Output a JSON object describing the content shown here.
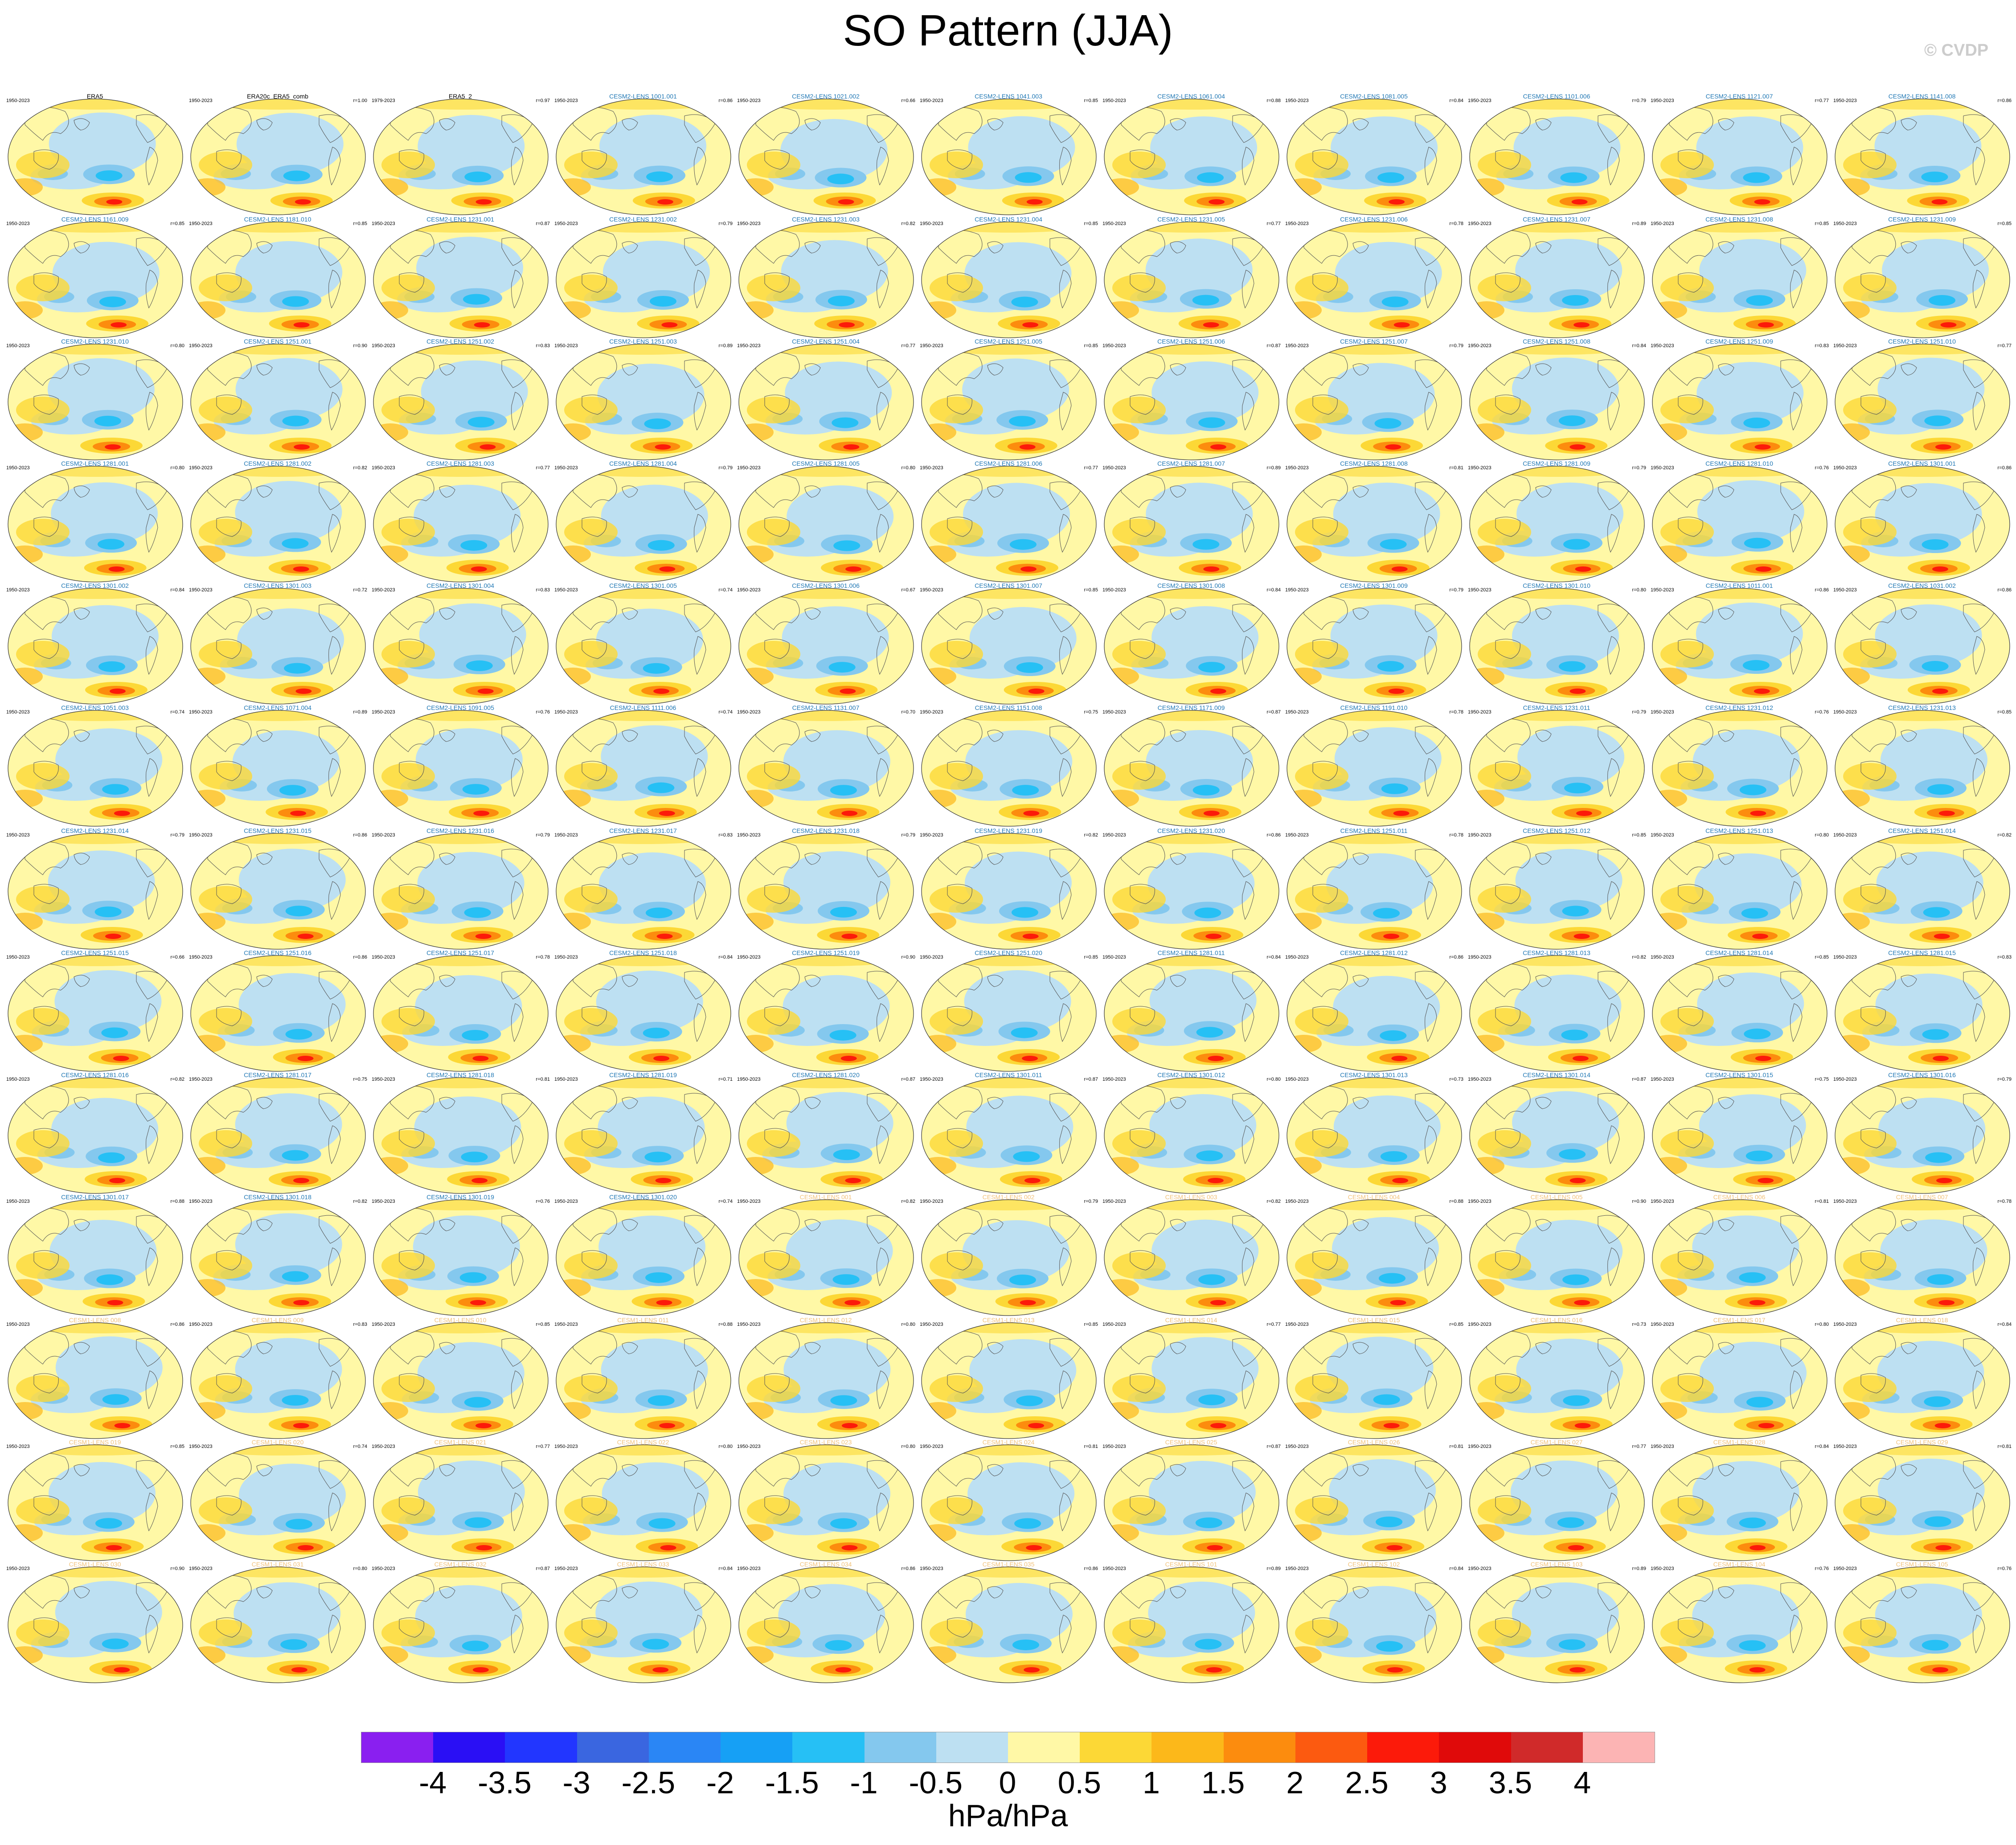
{
  "title": "SO Pattern (JJA)",
  "watermark": "© CVDP",
  "colorbar": {
    "ticks": [
      "-4",
      "-3.5",
      "-3",
      "-2.5",
      "-2",
      "-1.5",
      "-1",
      "-0.5",
      "0",
      "0.5",
      "1",
      "1.5",
      "2",
      "2.5",
      "3",
      "3.5",
      "4"
    ],
    "colors": [
      "#8a1ff0",
      "#2a0ff5",
      "#2236ff",
      "#3a66e0",
      "#2a86f5",
      "#16a0f5",
      "#26c0f5",
      "#84c8ee",
      "#bde0f2",
      "#fff8a6",
      "#fcd836",
      "#fcb81a",
      "#fc8c0e",
      "#fc5a10",
      "#fc1a0a",
      "#e00a0a",
      "#d02a2a",
      "#fcb4b4"
    ],
    "units": "hPa/hPa"
  },
  "panels": [
    {
      "title": "ERA5",
      "years": "1950-2023",
      "r": ""
    },
    {
      "title": "ERA20c_ERA5_comb",
      "years": "1950-2023",
      "r": "r=1.00"
    },
    {
      "title": "ERA5_2",
      "years": "1979-2023",
      "r": "r=0.97"
    },
    {
      "title": "CESM2-LENS 1001.001",
      "years": "1950-2023",
      "r": "r=0.86"
    },
    {
      "title": "CESM2-LENS 1021.002",
      "years": "1950-2023",
      "r": "r=0.66"
    },
    {
      "title": "CESM2-LENS 1041.003",
      "years": "1950-2023",
      "r": "r=0.85"
    },
    {
      "title": "CESM2-LENS 1061.004",
      "years": "1950-2023",
      "r": "r=0.88"
    },
    {
      "title": "CESM2-LENS 1081.005",
      "years": "1950-2023",
      "r": "r=0.84"
    },
    {
      "title": "CESM2-LENS 1101.006",
      "years": "1950-2023",
      "r": "r=0.79"
    },
    {
      "title": "CESM2-LENS 1121.007",
      "years": "1950-2023",
      "r": "r=0.77"
    },
    {
      "title": "CESM2-LENS 1141.008",
      "years": "1950-2023",
      "r": "r=0.86"
    },
    {
      "title": "CESM2-LENS 1161.009",
      "years": "1950-2023",
      "r": "r=0.85"
    },
    {
      "title": "CESM2-LENS 1181.010",
      "years": "1950-2023",
      "r": "r=0.85"
    },
    {
      "title": "CESM2-LENS 1231.001",
      "years": "1950-2023",
      "r": "r=0.87"
    },
    {
      "title": "CESM2-LENS 1231.002",
      "years": "1950-2023",
      "r": "r=0.79"
    },
    {
      "title": "CESM2-LENS 1231.003",
      "years": "1950-2023",
      "r": "r=0.82"
    },
    {
      "title": "CESM2-LENS 1231.004",
      "years": "1950-2023",
      "r": "r=0.85"
    },
    {
      "title": "CESM2-LENS 1231.005",
      "years": "1950-2023",
      "r": "r=0.77"
    },
    {
      "title": "CESM2-LENS 1231.006",
      "years": "1950-2023",
      "r": "r=0.78"
    },
    {
      "title": "CESM2-LENS 1231.007",
      "years": "1950-2023",
      "r": "r=0.89"
    },
    {
      "title": "CESM2-LENS 1231.008",
      "years": "1950-2023",
      "r": "r=0.85"
    },
    {
      "title": "CESM2-LENS 1231.009",
      "years": "1950-2023",
      "r": "r=0.85"
    },
    {
      "title": "CESM2-LENS 1231.010",
      "years": "1950-2023",
      "r": "r=0.80"
    },
    {
      "title": "CESM2-LENS 1251.001",
      "years": "1950-2023",
      "r": "r=0.90"
    },
    {
      "title": "CESM2-LENS 1251.002",
      "years": "1950-2023",
      "r": "r=0.83"
    },
    {
      "title": "CESM2-LENS 1251.003",
      "years": "1950-2023",
      "r": "r=0.89"
    },
    {
      "title": "CESM2-LENS 1251.004",
      "years": "1950-2023",
      "r": "r=0.77"
    },
    {
      "title": "CESM2-LENS 1251.005",
      "years": "1950-2023",
      "r": "r=0.85"
    },
    {
      "title": "CESM2-LENS 1251.006",
      "years": "1950-2023",
      "r": "r=0.87"
    },
    {
      "title": "CESM2-LENS 1251.007",
      "years": "1950-2023",
      "r": "r=0.79"
    },
    {
      "title": "CESM2-LENS 1251.008",
      "years": "1950-2023",
      "r": "r=0.84"
    },
    {
      "title": "CESM2-LENS 1251.009",
      "years": "1950-2023",
      "r": "r=0.83"
    },
    {
      "title": "CESM2-LENS 1251.010",
      "years": "1950-2023",
      "r": "r=0.77"
    },
    {
      "title": "CESM2-LENS 1281.001",
      "years": "1950-2023",
      "r": "r=0.80"
    },
    {
      "title": "CESM2-LENS 1281.002",
      "years": "1950-2023",
      "r": "r=0.82"
    },
    {
      "title": "CESM2-LENS 1281.003",
      "years": "1950-2023",
      "r": "r=0.77"
    },
    {
      "title": "CESM2-LENS 1281.004",
      "years": "1950-2023",
      "r": "r=0.79"
    },
    {
      "title": "CESM2-LENS 1281.005",
      "years": "1950-2023",
      "r": "r=0.80"
    },
    {
      "title": "CESM2-LENS 1281.006",
      "years": "1950-2023",
      "r": "r=0.77"
    },
    {
      "title": "CESM2-LENS 1281.007",
      "years": "1950-2023",
      "r": "r=0.89"
    },
    {
      "title": "CESM2-LENS 1281.008",
      "years": "1950-2023",
      "r": "r=0.81"
    },
    {
      "title": "CESM2-LENS 1281.009",
      "years": "1950-2023",
      "r": "r=0.79"
    },
    {
      "title": "CESM2-LENS 1281.010",
      "years": "1950-2023",
      "r": "r=0.76"
    },
    {
      "title": "CESM2-LENS 1301.001",
      "years": "1950-2023",
      "r": "r=0.86"
    },
    {
      "title": "CESM2-LENS 1301.002",
      "years": "1950-2023",
      "r": "r=0.84"
    },
    {
      "title": "CESM2-LENS 1301.003",
      "years": "1950-2023",
      "r": "r=0.72"
    },
    {
      "title": "CESM2-LENS 1301.004",
      "years": "1950-2023",
      "r": "r=0.83"
    },
    {
      "title": "CESM2-LENS 1301.005",
      "years": "1950-2023",
      "r": "r=0.74"
    },
    {
      "title": "CESM2-LENS 1301.006",
      "years": "1950-2023",
      "r": "r=0.67"
    },
    {
      "title": "CESM2-LENS 1301.007",
      "years": "1950-2023",
      "r": "r=0.85"
    },
    {
      "title": "CESM2-LENS 1301.008",
      "years": "1950-2023",
      "r": "r=0.84"
    },
    {
      "title": "CESM2-LENS 1301.009",
      "years": "1950-2023",
      "r": "r=0.79"
    },
    {
      "title": "CESM2-LENS 1301.010",
      "years": "1950-2023",
      "r": "r=0.80"
    },
    {
      "title": "CESM2-LENS 1011.001",
      "years": "1950-2023",
      "r": "r=0.86"
    },
    {
      "title": "CESM2-LENS 1031.002",
      "years": "1950-2023",
      "r": "r=0.86"
    },
    {
      "title": "CESM2-LENS 1051.003",
      "years": "1950-2023",
      "r": "r=0.74"
    },
    {
      "title": "CESM2-LENS 1071.004",
      "years": "1950-2023",
      "r": "r=0.89"
    },
    {
      "title": "CESM2-LENS 1091.005",
      "years": "1950-2023",
      "r": "r=0.76"
    },
    {
      "title": "CESM2-LENS 1111.006",
      "years": "1950-2023",
      "r": "r=0.74"
    },
    {
      "title": "CESM2-LENS 1131.007",
      "years": "1950-2023",
      "r": "r=0.70"
    },
    {
      "title": "CESM2-LENS 1151.008",
      "years": "1950-2023",
      "r": "r=0.75"
    },
    {
      "title": "CESM2-LENS 1171.009",
      "years": "1950-2023",
      "r": "r=0.87"
    },
    {
      "title": "CESM2-LENS 1191.010",
      "years": "1950-2023",
      "r": "r=0.78"
    },
    {
      "title": "CESM2-LENS 1231.011",
      "years": "1950-2023",
      "r": "r=0.79"
    },
    {
      "title": "CESM2-LENS 1231.012",
      "years": "1950-2023",
      "r": "r=0.76"
    },
    {
      "title": "CESM2-LENS 1231.013",
      "years": "1950-2023",
      "r": "r=0.85"
    },
    {
      "title": "CESM2-LENS 1231.014",
      "years": "1950-2023",
      "r": "r=0.79"
    },
    {
      "title": "CESM2-LENS 1231.015",
      "years": "1950-2023",
      "r": "r=0.86"
    },
    {
      "title": "CESM2-LENS 1231.016",
      "years": "1950-2023",
      "r": "r=0.79"
    },
    {
      "title": "CESM2-LENS 1231.017",
      "years": "1950-2023",
      "r": "r=0.83"
    },
    {
      "title": "CESM2-LENS 1231.018",
      "years": "1950-2023",
      "r": "r=0.79"
    },
    {
      "title": "CESM2-LENS 1231.019",
      "years": "1950-2023",
      "r": "r=0.82"
    },
    {
      "title": "CESM2-LENS 1231.020",
      "years": "1950-2023",
      "r": "r=0.86"
    },
    {
      "title": "CESM2-LENS 1251.011",
      "years": "1950-2023",
      "r": "r=0.78"
    },
    {
      "title": "CESM2-LENS 1251.012",
      "years": "1950-2023",
      "r": "r=0.85"
    },
    {
      "title": "CESM2-LENS 1251.013",
      "years": "1950-2023",
      "r": "r=0.80"
    },
    {
      "title": "CESM2-LENS 1251.014",
      "years": "1950-2023",
      "r": "r=0.82"
    },
    {
      "title": "CESM2-LENS 1251.015",
      "years": "1950-2023",
      "r": "r=0.66"
    },
    {
      "title": "CESM2-LENS 1251.016",
      "years": "1950-2023",
      "r": "r=0.86"
    },
    {
      "title": "CESM2-LENS 1251.017",
      "years": "1950-2023",
      "r": "r=0.78"
    },
    {
      "title": "CESM2-LENS 1251.018",
      "years": "1950-2023",
      "r": "r=0.84"
    },
    {
      "title": "CESM2-LENS 1251.019",
      "years": "1950-2023",
      "r": "r=0.90"
    },
    {
      "title": "CESM2-LENS 1251.020",
      "years": "1950-2023",
      "r": "r=0.85"
    },
    {
      "title": "CESM2-LENS 1281.011",
      "years": "1950-2023",
      "r": "r=0.84"
    },
    {
      "title": "CESM2-LENS 1281.012",
      "years": "1950-2023",
      "r": "r=0.86"
    },
    {
      "title": "CESM2-LENS 1281.013",
      "years": "1950-2023",
      "r": "r=0.82"
    },
    {
      "title": "CESM2-LENS 1281.014",
      "years": "1950-2023",
      "r": "r=0.85"
    },
    {
      "title": "CESM2-LENS 1281.015",
      "years": "1950-2023",
      "r": "r=0.83"
    },
    {
      "title": "CESM2-LENS 1281.016",
      "years": "1950-2023",
      "r": "r=0.82"
    },
    {
      "title": "CESM2-LENS 1281.017",
      "years": "1950-2023",
      "r": "r=0.75"
    },
    {
      "title": "CESM2-LENS 1281.018",
      "years": "1950-2023",
      "r": "r=0.81"
    },
    {
      "title": "CESM2-LENS 1281.019",
      "years": "1950-2023",
      "r": "r=0.71"
    },
    {
      "title": "CESM2-LENS 1281.020",
      "years": "1950-2023",
      "r": "r=0.87"
    },
    {
      "title": "CESM2-LENS 1301.011",
      "years": "1950-2023",
      "r": "r=0.87"
    },
    {
      "title": "CESM2-LENS 1301.012",
      "years": "1950-2023",
      "r": "r=0.80"
    },
    {
      "title": "CESM2-LENS 1301.013",
      "years": "1950-2023",
      "r": "r=0.73"
    },
    {
      "title": "CESM2-LENS 1301.014",
      "years": "1950-2023",
      "r": "r=0.87"
    },
    {
      "title": "CESM2-LENS 1301.015",
      "years": "1950-2023",
      "r": "r=0.75"
    },
    {
      "title": "CESM2-LENS 1301.016",
      "years": "1950-2023",
      "r": "r=0.79"
    },
    {
      "title": "CESM2-LENS 1301.017",
      "years": "1950-2023",
      "r": "r=0.88"
    },
    {
      "title": "CESM2-LENS 1301.018",
      "years": "1950-2023",
      "r": "r=0.82"
    },
    {
      "title": "CESM2-LENS 1301.019",
      "years": "1950-2023",
      "r": "r=0.76"
    },
    {
      "title": "CESM2-LENS 1301.020",
      "years": "1950-2023",
      "r": "r=0.74"
    },
    {
      "title": "CESM1-LENS 001",
      "years": "1950-2023",
      "r": "r=0.82"
    },
    {
      "title": "CESM1-LENS 002",
      "years": "1950-2023",
      "r": "r=0.79"
    },
    {
      "title": "CESM1-LENS 003",
      "years": "1950-2023",
      "r": "r=0.82"
    },
    {
      "title": "CESM1-LENS 004",
      "years": "1950-2023",
      "r": "r=0.88"
    },
    {
      "title": "CESM1-LENS 005",
      "years": "1950-2023",
      "r": "r=0.90"
    },
    {
      "title": "CESM1-LENS 006",
      "years": "1950-2023",
      "r": "r=0.81"
    },
    {
      "title": "CESM1-LENS 007",
      "years": "1950-2023",
      "r": "r=0.78"
    },
    {
      "title": "CESM1-LENS 008",
      "years": "1950-2023",
      "r": "r=0.86"
    },
    {
      "title": "CESM1-LENS 009",
      "years": "1950-2023",
      "r": "r=0.83"
    },
    {
      "title": "CESM1-LENS 010",
      "years": "1950-2023",
      "r": "r=0.85"
    },
    {
      "title": "CESM1-LENS 011",
      "years": "1950-2023",
      "r": "r=0.88"
    },
    {
      "title": "CESM1-LENS 012",
      "years": "1950-2023",
      "r": "r=0.80"
    },
    {
      "title": "CESM1-LENS 013",
      "years": "1950-2023",
      "r": "r=0.85"
    },
    {
      "title": "CESM1-LENS 014",
      "years": "1950-2023",
      "r": "r=0.77"
    },
    {
      "title": "CESM1-LENS 015",
      "years": "1950-2023",
      "r": "r=0.85"
    },
    {
      "title": "CESM1-LENS 016",
      "years": "1950-2023",
      "r": "r=0.73"
    },
    {
      "title": "CESM1-LENS 017",
      "years": "1950-2023",
      "r": "r=0.80"
    },
    {
      "title": "CESM1-LENS 018",
      "years": "1950-2023",
      "r": "r=0.84"
    },
    {
      "title": "CESM1-LENS 019",
      "years": "1950-2023",
      "r": "r=0.85"
    },
    {
      "title": "CESM1-LENS 020",
      "years": "1950-2023",
      "r": "r=0.74"
    },
    {
      "title": "CESM1-LENS 021",
      "years": "1950-2023",
      "r": "r=0.77"
    },
    {
      "title": "CESM1-LENS 022",
      "years": "1950-2023",
      "r": "r=0.80"
    },
    {
      "title": "CESM1-LENS 023",
      "years": "1950-2023",
      "r": "r=0.80"
    },
    {
      "title": "CESM1-LENS 024",
      "years": "1950-2023",
      "r": "r=0.81"
    },
    {
      "title": "CESM1-LENS 025",
      "years": "1950-2023",
      "r": "r=0.87"
    },
    {
      "title": "CESM1-LENS 026",
      "years": "1950-2023",
      "r": "r=0.81"
    },
    {
      "title": "CESM1-LENS 027",
      "years": "1950-2023",
      "r": "r=0.77"
    },
    {
      "title": "CESM1-LENS 028",
      "years": "1950-2023",
      "r": "r=0.84"
    },
    {
      "title": "CESM1-LENS 029",
      "years": "1950-2023",
      "r": "r=0.81"
    },
    {
      "title": "CESM1-LENS 030",
      "years": "1950-2023",
      "r": "r=0.90"
    },
    {
      "title": "CESM1-LENS 031",
      "years": "1950-2023",
      "r": "r=0.80"
    },
    {
      "title": "CESM1-LENS 032",
      "years": "1950-2023",
      "r": "r=0.87"
    },
    {
      "title": "CESM1-LENS 033",
      "years": "1950-2023",
      "r": "r=0.84"
    },
    {
      "title": "CESM1-LENS 034",
      "years": "1950-2023",
      "r": "r=0.86"
    },
    {
      "title": "CESM1-LENS 035",
      "years": "1950-2023",
      "r": "r=0.86"
    },
    {
      "title": "CESM1-LENS 101",
      "years": "1950-2023",
      "r": "r=0.89"
    },
    {
      "title": "CESM1-LENS 102",
      "years": "1950-2023",
      "r": "r=0.84"
    },
    {
      "title": "CESM1-LENS 103",
      "years": "1950-2023",
      "r": "r=0.89"
    },
    {
      "title": "CESM1-LENS 104",
      "years": "1950-2023",
      "r": "r=0.76"
    },
    {
      "title": "CESM1-LENS 105",
      "years": "1950-2023",
      "r": "r=0.76"
    }
  ],
  "title_colors": {
    "obs": "#000000",
    "cesm2": "#1f77b4",
    "cesm1": "#f2c27a"
  }
}
